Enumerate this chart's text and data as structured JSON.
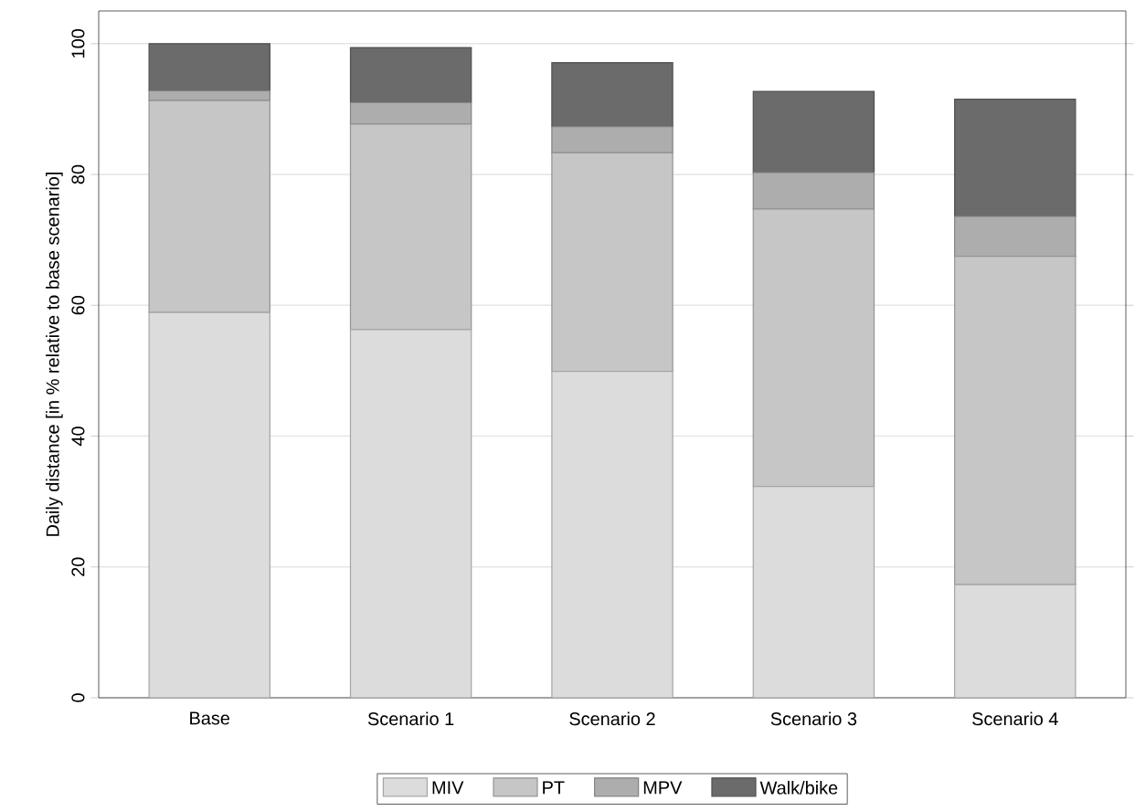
{
  "chart_data": {
    "type": "bar",
    "stacked": true,
    "ylabel": "Daily distance [in % relative to base scenario]",
    "categories": [
      "Base",
      "Scenario 1",
      "Scenario 2",
      "Scenario 3",
      "Scenario 4"
    ],
    "series": [
      {
        "name": "MIV",
        "color": "#dcdcdc",
        "values": [
          58.9,
          56.3,
          49.9,
          32.3,
          17.3
        ]
      },
      {
        "name": "PT",
        "color": "#c6c6c6",
        "values": [
          32.4,
          31.4,
          33.4,
          42.4,
          50.2
        ]
      },
      {
        "name": "MPV",
        "color": "#adadad",
        "values": [
          1.5,
          3.3,
          4.0,
          5.6,
          6.1
        ]
      },
      {
        "name": "Walk/bike",
        "color": "#6b6b6b",
        "values": [
          7.2,
          8.4,
          9.8,
          12.4,
          17.9
        ]
      }
    ],
    "ylim": [
      0,
      105
    ],
    "yticks": [
      0,
      20,
      40,
      60,
      80,
      100
    ],
    "grid": "y",
    "legend": "bottom"
  }
}
